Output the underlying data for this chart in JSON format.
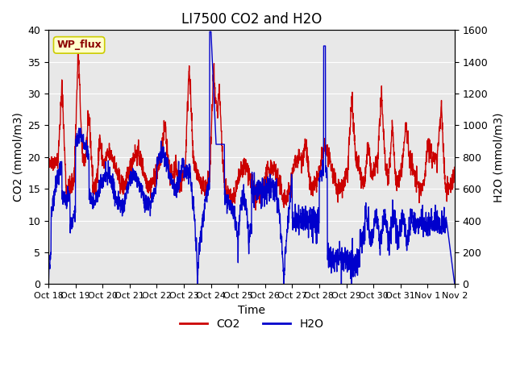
{
  "title": "LI7500 CO2 and H2O",
  "xlabel": "Time",
  "ylabel_left": "CO2 (mmol/m3)",
  "ylabel_right": "H2O (mmol/m3)",
  "ylim_left": [
    0,
    40
  ],
  "ylim_right": [
    0,
    1600
  ],
  "xtick_labels": [
    "Oct 18",
    "Oct 19",
    "Oct 20",
    "Oct 21",
    "Oct 22",
    "Oct 23",
    "Oct 24",
    "Oct 25",
    "Oct 26",
    "Oct 27",
    "Oct 28",
    "Oct 29",
    "Oct 30",
    "Oct 31",
    "Nov 1",
    "Nov 2"
  ],
  "legend_labels": [
    "CO2",
    "H2O"
  ],
  "co2_color": "#cc0000",
  "h2o_color": "#0000cc",
  "annotation_text": "WP_flux",
  "background_color": "#e8e8e8",
  "title_fontsize": 12,
  "axis_fontsize": 10,
  "tick_fontsize": 9
}
